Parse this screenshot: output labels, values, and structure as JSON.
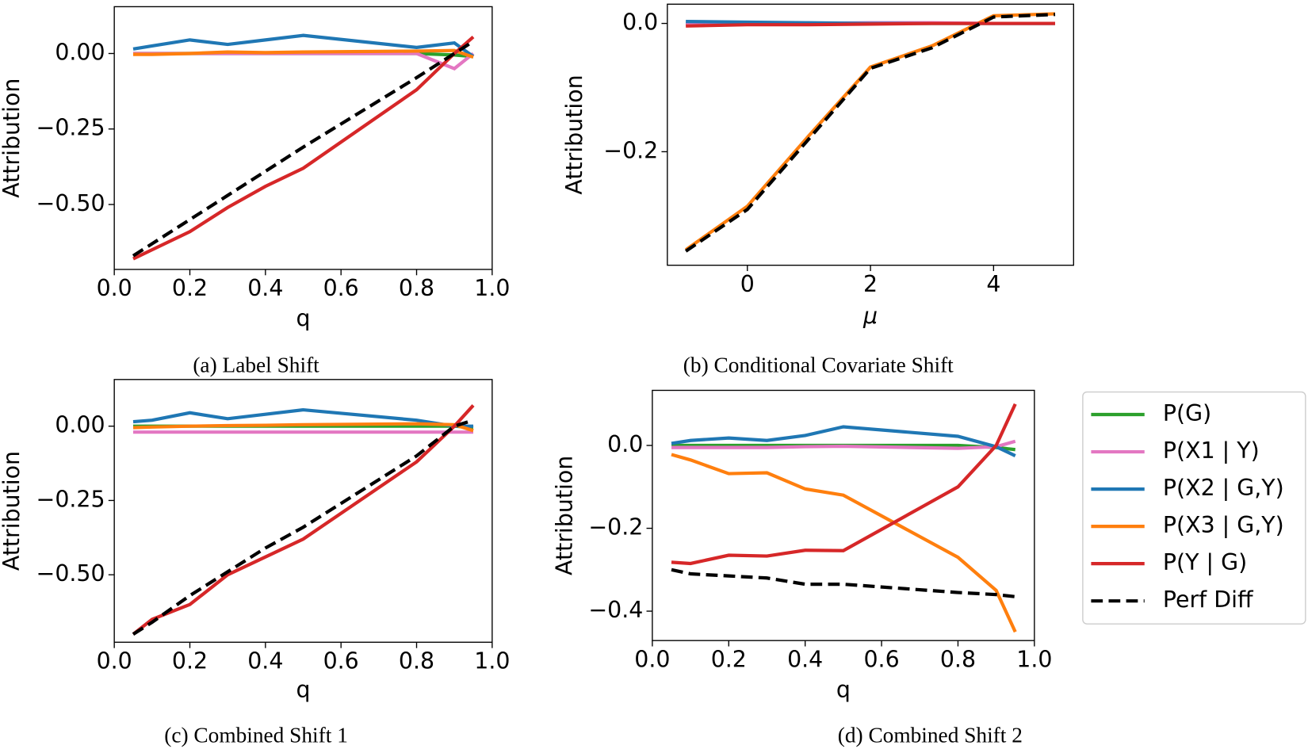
{
  "legend": {
    "entries": [
      {
        "name": "P(G)",
        "color": "#2ca02c",
        "linestyle": "solid"
      },
      {
        "name": "P(X1 | Y)",
        "color": "#e377c2",
        "linestyle": "solid"
      },
      {
        "name": "P(X2 | G,Y)",
        "color": "#1f77b4",
        "linestyle": "solid"
      },
      {
        "name": "P(X3 | G,Y)",
        "color": "#ff7f0e",
        "linestyle": "solid"
      },
      {
        "name": "P(Y | G)",
        "color": "#d62728",
        "linestyle": "solid"
      },
      {
        "name": "Perf Diff",
        "color": "#000000",
        "linestyle": "dashed"
      }
    ]
  },
  "chart_data": [
    {
      "type": "line",
      "caption": "(a) Label Shift",
      "xlabel": "q",
      "ylabel": "Attribution",
      "x": [
        0.05,
        0.1,
        0.2,
        0.3,
        0.4,
        0.5,
        0.8,
        0.9,
        0.95
      ],
      "xlim": [
        0,
        1
      ],
      "ylim": [
        -0.715,
        0.155
      ],
      "xticks": [
        {
          "value": 0,
          "label": "0.0"
        },
        {
          "value": 0.2,
          "label": "0.2"
        },
        {
          "value": 0.4,
          "label": "0.4"
        },
        {
          "value": 0.6,
          "label": "0.6"
        },
        {
          "value": 0.8,
          "label": "0.8"
        },
        {
          "value": 1,
          "label": "1.0"
        }
      ],
      "yticks": [
        {
          "value": 0,
          "label": "0.00"
        },
        {
          "value": -0.25,
          "label": "−0.25"
        },
        {
          "value": -0.5,
          "label": "−0.50"
        }
      ],
      "series": [
        {
          "values": [
            0,
            0,
            0,
            0,
            0,
            0,
            0,
            -0.005,
            -0.01
          ]
        },
        {
          "values": [
            0,
            0,
            0,
            0,
            0,
            0,
            0,
            -0.05,
            0.0
          ]
        },
        {
          "values": [
            0.015,
            0.025,
            0.045,
            0.03,
            0.045,
            0.06,
            0.02,
            0.035,
            -0.01
          ]
        },
        {
          "values": [
            -0.003,
            -0.003,
            0,
            0.005,
            0.003,
            0.005,
            0.008,
            0.01,
            -0.012
          ]
        },
        {
          "values": [
            -0.68,
            -0.65,
            -0.59,
            -0.51,
            -0.44,
            -0.38,
            -0.12,
            0.0,
            0.055
          ]
        },
        {
          "values": [
            -0.67,
            -0.63,
            -0.55,
            -0.47,
            -0.39,
            -0.31,
            -0.08,
            0.0,
            0.04
          ]
        }
      ]
    },
    {
      "type": "line",
      "caption": "(b) Conditional Covariate Shift",
      "xlabel": "μ",
      "ylabel": "Attribution",
      "x": [
        -1,
        0,
        1,
        2,
        3,
        4,
        5
      ],
      "xlim": [
        -1.3,
        5.3
      ],
      "ylim": [
        -0.377,
        0.03
      ],
      "xticks": [
        0,
        2,
        4
      ],
      "yticks": [
        {
          "value": 0,
          "label": "0.0"
        },
        {
          "value": -0.2,
          "label": "−0.2"
        }
      ],
      "series": [
        {
          "values": [
            0,
            0,
            0,
            0,
            0,
            0,
            0
          ]
        },
        {
          "values": [
            0,
            0,
            0,
            0.001,
            0.001,
            0,
            0
          ]
        },
        {
          "values": [
            0.003,
            0.002,
            0.001,
            0,
            0,
            0,
            0
          ]
        },
        {
          "values": [
            -0.353,
            -0.285,
            -0.175,
            -0.068,
            -0.035,
            0.012,
            0.015
          ]
        },
        {
          "values": [
            -0.004,
            -0.002,
            -0.002,
            -0.001,
            0,
            0,
            0
          ]
        },
        {
          "values": [
            -0.355,
            -0.29,
            -0.18,
            -0.07,
            -0.038,
            0.01,
            0.014
          ]
        }
      ]
    },
    {
      "type": "line",
      "caption": "(c) Combined Shift 1",
      "xlabel": "q",
      "ylabel": "Attribution",
      "x": [
        0.05,
        0.1,
        0.2,
        0.3,
        0.4,
        0.5,
        0.8,
        0.9,
        0.95
      ],
      "xlim": [
        0,
        1
      ],
      "ylim": [
        -0.727,
        0.157
      ],
      "xticks": [
        {
          "value": 0,
          "label": "0.0"
        },
        {
          "value": 0.2,
          "label": "0.2"
        },
        {
          "value": 0.4,
          "label": "0.4"
        },
        {
          "value": 0.6,
          "label": "0.6"
        },
        {
          "value": 0.8,
          "label": "0.8"
        },
        {
          "value": 1,
          "label": "1.0"
        }
      ],
      "yticks": [
        {
          "value": 0,
          "label": "0.00"
        },
        {
          "value": -0.25,
          "label": "−0.25"
        },
        {
          "value": -0.5,
          "label": "−0.50"
        }
      ],
      "series": [
        {
          "values": [
            0,
            0,
            0,
            0,
            0,
            0,
            0,
            0,
            -0.005
          ]
        },
        {
          "values": [
            -0.02,
            -0.02,
            -0.02,
            -0.02,
            -0.02,
            -0.02,
            -0.02,
            -0.02,
            -0.02
          ]
        },
        {
          "values": [
            0.015,
            0.02,
            0.045,
            0.025,
            0.04,
            0.055,
            0.02,
            0,
            0
          ]
        },
        {
          "values": [
            -0.005,
            -0.003,
            0,
            0.002,
            0.003,
            0.005,
            0.008,
            0.005,
            -0.015
          ]
        },
        {
          "values": [
            -0.7,
            -0.65,
            -0.6,
            -0.5,
            -0.44,
            -0.38,
            -0.12,
            0.0,
            0.07
          ]
        },
        {
          "values": [
            -0.7,
            -0.66,
            -0.57,
            -0.49,
            -0.41,
            -0.34,
            -0.1,
            0,
            0.02
          ]
        }
      ]
    },
    {
      "type": "line",
      "caption": "(d) Combined Shift 2",
      "xlabel": "q",
      "ylabel": "Attribution",
      "x": [
        0.05,
        0.1,
        0.2,
        0.3,
        0.4,
        0.5,
        0.8,
        0.9,
        0.95
      ],
      "xlim": [
        0,
        1
      ],
      "ylim": [
        -0.471,
        0.133
      ],
      "xticks": [
        {
          "value": 0,
          "label": "0.0"
        },
        {
          "value": 0.2,
          "label": "0.2"
        },
        {
          "value": 0.4,
          "label": "0.4"
        },
        {
          "value": 0.6,
          "label": "0.6"
        },
        {
          "value": 0.8,
          "label": "0.8"
        },
        {
          "value": 1,
          "label": "1.0"
        }
      ],
      "yticks": [
        {
          "value": 0,
          "label": "0.0"
        },
        {
          "value": -0.2,
          "label": "−0.2"
        },
        {
          "value": -0.4,
          "label": "−0.4"
        }
      ],
      "series": [
        {
          "values": [
            0,
            0,
            0,
            0,
            0,
            0,
            0,
            -0.005,
            -0.01
          ]
        },
        {
          "values": [
            -0.005,
            -0.005,
            -0.005,
            -0.005,
            -0.003,
            -0.002,
            -0.007,
            -0.003,
            0.01
          ]
        },
        {
          "values": [
            0.005,
            0.012,
            0.018,
            0.012,
            0.024,
            0.045,
            0.022,
            -0.003,
            -0.025
          ]
        },
        {
          "values": [
            -0.022,
            -0.035,
            -0.068,
            -0.066,
            -0.105,
            -0.12,
            -0.27,
            -0.35,
            -0.45
          ]
        },
        {
          "values": [
            -0.282,
            -0.285,
            -0.265,
            -0.267,
            -0.253,
            -0.254,
            -0.1,
            0,
            0.1
          ]
        },
        {
          "values": [
            -0.3,
            -0.31,
            -0.315,
            -0.32,
            -0.335,
            -0.335,
            -0.355,
            -0.36,
            -0.365
          ]
        }
      ]
    }
  ]
}
